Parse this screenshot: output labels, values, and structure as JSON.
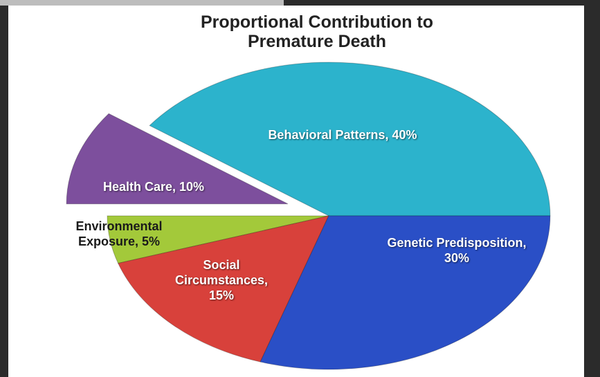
{
  "chart_data": {
    "type": "pie",
    "title": "Proportional Contribution to Premature Death",
    "categories": [
      "Behavioral Patterns, 40%",
      "Health Care, 10%",
      "Environmental Exposure, 5%",
      "Social Circumstances, 15%",
      "Genetic Predisposition, 30%"
    ],
    "values": [
      40,
      10,
      5,
      15,
      30
    ],
    "colors": [
      "#2cb3cc",
      "#7d4f9d",
      "#a3c93a",
      "#d8413b",
      "#2a4fc6"
    ],
    "exploded": [
      false,
      true,
      false,
      false,
      false
    ]
  }
}
